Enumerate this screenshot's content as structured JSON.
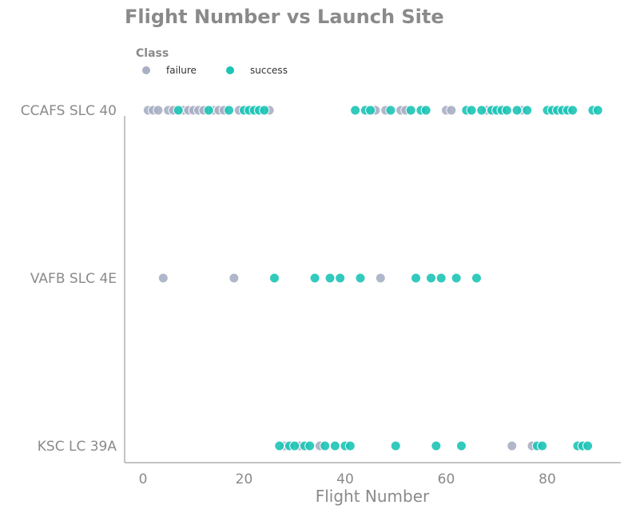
{
  "chart_data": {
    "type": "scatter",
    "title": "Flight Number vs Launch Site",
    "xlabel": "Flight Number",
    "ylabel": "",
    "xlim": [
      -3,
      94
    ],
    "xticks": [
      0,
      20,
      40,
      60,
      80
    ],
    "categories": [
      "CCAFS SLC 40",
      "VAFB SLC 4E",
      "KSC LC 39A"
    ],
    "legend": {
      "title": "Class",
      "placement": "top-left",
      "entries": [
        {
          "label": "failure",
          "color": "#a9afc4"
        },
        {
          "label": "success",
          "color": "#1cc4b6"
        }
      ]
    },
    "series": [
      {
        "name": "failure",
        "color": "#a9afc4",
        "points": [
          {
            "x": 1,
            "y": "CCAFS SLC 40"
          },
          {
            "x": 2,
            "y": "CCAFS SLC 40"
          },
          {
            "x": 3,
            "y": "CCAFS SLC 40"
          },
          {
            "x": 5,
            "y": "CCAFS SLC 40"
          },
          {
            "x": 6,
            "y": "CCAFS SLC 40"
          },
          {
            "x": 8,
            "y": "CCAFS SLC 40"
          },
          {
            "x": 9,
            "y": "CCAFS SLC 40"
          },
          {
            "x": 10,
            "y": "CCAFS SLC 40"
          },
          {
            "x": 11,
            "y": "CCAFS SLC 40"
          },
          {
            "x": 12,
            "y": "CCAFS SLC 40"
          },
          {
            "x": 14,
            "y": "CCAFS SLC 40"
          },
          {
            "x": 15,
            "y": "CCAFS SLC 40"
          },
          {
            "x": 16,
            "y": "CCAFS SLC 40"
          },
          {
            "x": 19,
            "y": "CCAFS SLC 40"
          },
          {
            "x": 25,
            "y": "CCAFS SLC 40"
          },
          {
            "x": 46,
            "y": "CCAFS SLC 40"
          },
          {
            "x": 48,
            "y": "CCAFS SLC 40"
          },
          {
            "x": 51,
            "y": "CCAFS SLC 40"
          },
          {
            "x": 52,
            "y": "CCAFS SLC 40"
          },
          {
            "x": 60,
            "y": "CCAFS SLC 40"
          },
          {
            "x": 61,
            "y": "CCAFS SLC 40"
          },
          {
            "x": 68,
            "y": "CCAFS SLC 40"
          },
          {
            "x": 75,
            "y": "CCAFS SLC 40"
          },
          {
            "x": 4,
            "y": "VAFB SLC 4E"
          },
          {
            "x": 18,
            "y": "VAFB SLC 4E"
          },
          {
            "x": 47,
            "y": "VAFB SLC 4E"
          },
          {
            "x": 28,
            "y": "KSC LC 39A"
          },
          {
            "x": 31,
            "y": "KSC LC 39A"
          },
          {
            "x": 35,
            "y": "KSC LC 39A"
          },
          {
            "x": 73,
            "y": "KSC LC 39A"
          },
          {
            "x": 77,
            "y": "KSC LC 39A"
          }
        ]
      },
      {
        "name": "success",
        "color": "#1cc4b6",
        "points": [
          {
            "x": 7,
            "y": "CCAFS SLC 40"
          },
          {
            "x": 13,
            "y": "CCAFS SLC 40"
          },
          {
            "x": 17,
            "y": "CCAFS SLC 40"
          },
          {
            "x": 20,
            "y": "CCAFS SLC 40"
          },
          {
            "x": 21,
            "y": "CCAFS SLC 40"
          },
          {
            "x": 22,
            "y": "CCAFS SLC 40"
          },
          {
            "x": 23,
            "y": "CCAFS SLC 40"
          },
          {
            "x": 24,
            "y": "CCAFS SLC 40"
          },
          {
            "x": 42,
            "y": "CCAFS SLC 40"
          },
          {
            "x": 44,
            "y": "CCAFS SLC 40"
          },
          {
            "x": 45,
            "y": "CCAFS SLC 40"
          },
          {
            "x": 49,
            "y": "CCAFS SLC 40"
          },
          {
            "x": 53,
            "y": "CCAFS SLC 40"
          },
          {
            "x": 55,
            "y": "CCAFS SLC 40"
          },
          {
            "x": 56,
            "y": "CCAFS SLC 40"
          },
          {
            "x": 64,
            "y": "CCAFS SLC 40"
          },
          {
            "x": 65,
            "y": "CCAFS SLC 40"
          },
          {
            "x": 67,
            "y": "CCAFS SLC 40"
          },
          {
            "x": 69,
            "y": "CCAFS SLC 40"
          },
          {
            "x": 70,
            "y": "CCAFS SLC 40"
          },
          {
            "x": 71,
            "y": "CCAFS SLC 40"
          },
          {
            "x": 72,
            "y": "CCAFS SLC 40"
          },
          {
            "x": 74,
            "y": "CCAFS SLC 40"
          },
          {
            "x": 76,
            "y": "CCAFS SLC 40"
          },
          {
            "x": 80,
            "y": "CCAFS SLC 40"
          },
          {
            "x": 81,
            "y": "CCAFS SLC 40"
          },
          {
            "x": 82,
            "y": "CCAFS SLC 40"
          },
          {
            "x": 83,
            "y": "CCAFS SLC 40"
          },
          {
            "x": 84,
            "y": "CCAFS SLC 40"
          },
          {
            "x": 85,
            "y": "CCAFS SLC 40"
          },
          {
            "x": 89,
            "y": "CCAFS SLC 40"
          },
          {
            "x": 90,
            "y": "CCAFS SLC 40"
          },
          {
            "x": 26,
            "y": "VAFB SLC 4E"
          },
          {
            "x": 34,
            "y": "VAFB SLC 4E"
          },
          {
            "x": 37,
            "y": "VAFB SLC 4E"
          },
          {
            "x": 39,
            "y": "VAFB SLC 4E"
          },
          {
            "x": 43,
            "y": "VAFB SLC 4E"
          },
          {
            "x": 54,
            "y": "VAFB SLC 4E"
          },
          {
            "x": 57,
            "y": "VAFB SLC 4E"
          },
          {
            "x": 59,
            "y": "VAFB SLC 4E"
          },
          {
            "x": 62,
            "y": "VAFB SLC 4E"
          },
          {
            "x": 66,
            "y": "VAFB SLC 4E"
          },
          {
            "x": 27,
            "y": "KSC LC 39A"
          },
          {
            "x": 29,
            "y": "KSC LC 39A"
          },
          {
            "x": 30,
            "y": "KSC LC 39A"
          },
          {
            "x": 32,
            "y": "KSC LC 39A"
          },
          {
            "x": 33,
            "y": "KSC LC 39A"
          },
          {
            "x": 36,
            "y": "KSC LC 39A"
          },
          {
            "x": 38,
            "y": "KSC LC 39A"
          },
          {
            "x": 40,
            "y": "KSC LC 39A"
          },
          {
            "x": 41,
            "y": "KSC LC 39A"
          },
          {
            "x": 50,
            "y": "KSC LC 39A"
          },
          {
            "x": 58,
            "y": "KSC LC 39A"
          },
          {
            "x": 63,
            "y": "KSC LC 39A"
          },
          {
            "x": 78,
            "y": "KSC LC 39A"
          },
          {
            "x": 79,
            "y": "KSC LC 39A"
          },
          {
            "x": 86,
            "y": "KSC LC 39A"
          },
          {
            "x": 87,
            "y": "KSC LC 39A"
          },
          {
            "x": 88,
            "y": "KSC LC 39A"
          }
        ]
      }
    ]
  }
}
